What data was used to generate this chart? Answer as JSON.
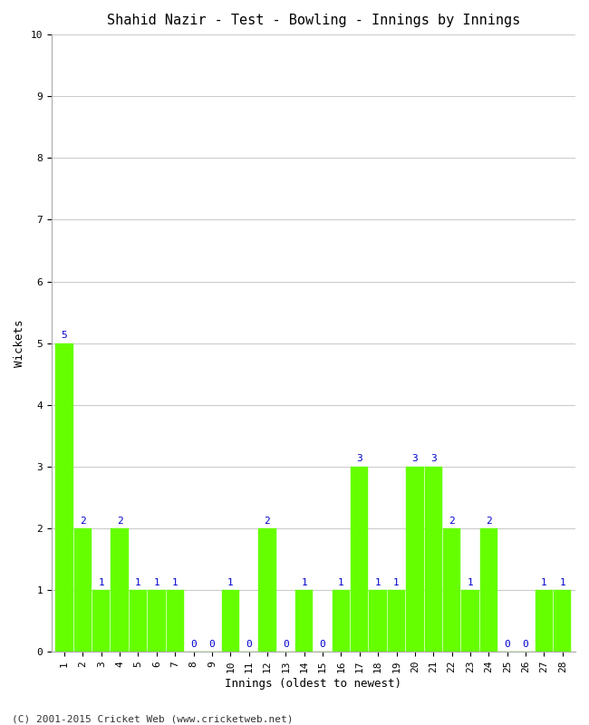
{
  "title": "Shahid Nazir - Test - Bowling - Innings by Innings",
  "xlabel": "Innings (oldest to newest)",
  "ylabel": "Wickets",
  "footer": "(C) 2001-2015 Cricket Web (www.cricketweb.net)",
  "innings": [
    1,
    2,
    3,
    4,
    5,
    6,
    7,
    8,
    9,
    10,
    11,
    12,
    13,
    14,
    15,
    16,
    17,
    18,
    19,
    20,
    21,
    22,
    23,
    24,
    25,
    26,
    27,
    28
  ],
  "wickets": [
    5,
    2,
    1,
    2,
    1,
    1,
    1,
    0,
    0,
    1,
    0,
    2,
    0,
    1,
    0,
    1,
    3,
    1,
    1,
    3,
    3,
    2,
    1,
    2,
    0,
    0,
    1,
    1
  ],
  "bar_color": "#66ff00",
  "bar_edge_color": "#66ff00",
  "label_color": "#0000cc",
  "background_color": "#ffffff",
  "grid_color": "#cccccc",
  "ylim": [
    0,
    10
  ],
  "yticks": [
    0,
    1,
    2,
    3,
    4,
    5,
    6,
    7,
    8,
    9,
    10
  ],
  "title_fontsize": 11,
  "label_fontsize": 9,
  "tick_fontsize": 8,
  "footer_fontsize": 8,
  "annotation_fontsize": 8
}
